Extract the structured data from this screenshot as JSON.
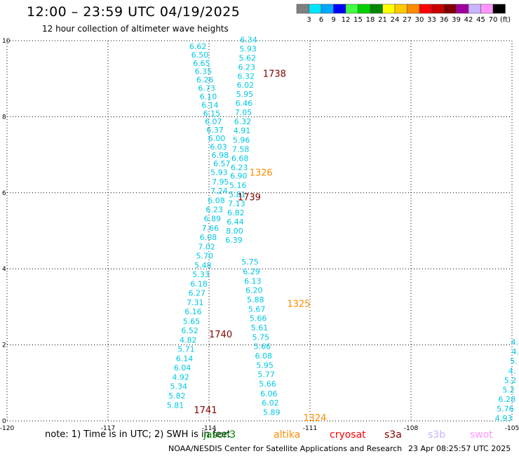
{
  "header": {
    "title": "12:00 – 23:59 UTC 04/19/2025",
    "subtitle": "12 hour collection of altimeter wave heights"
  },
  "colorbar": {
    "colors": [
      "#808080",
      "#00e5ff",
      "#00a8ff",
      "#0000ff",
      "#40ff40",
      "#00d000",
      "#008800",
      "#ffff00",
      "#ffc800",
      "#ff8c00",
      "#ff0000",
      "#c80000",
      "#800000",
      "#a000a0",
      "#c8b4ff",
      "#ff96ff",
      "#000000"
    ],
    "labels": [
      "3",
      "6",
      "9",
      "12",
      "15",
      "18",
      "21",
      "24",
      "27",
      "30",
      "33",
      "36",
      "39",
      "42",
      "45",
      "70",
      "(ft)"
    ]
  },
  "note": "note:  1) Time is in UTC;  2) SWH is in feet",
  "satellites": [
    {
      "name": "jason3",
      "color": "#008800"
    },
    {
      "name": "altika",
      "color": "#ff8c00"
    },
    {
      "name": "cryosat",
      "color": "#ff0000"
    },
    {
      "name": "s3a",
      "color": "#800000"
    },
    {
      "name": "s3b",
      "color": "#c8b4ff"
    },
    {
      "name": "swot",
      "color": "#ff96ff"
    }
  ],
  "footer": {
    "credit": "NOAA/NESDIS Center for Satellite Applications and Research",
    "timestamp": "23 Apr 08:25:57 UTC 2025"
  },
  "chart_data": {
    "type": "scatter",
    "xlim": [
      -120,
      -105
    ],
    "ylim": [
      0,
      10
    ],
    "xticks": [
      -120,
      -117,
      -114,
      -111,
      -108,
      -105
    ],
    "xtick_labels": [
      "-120",
      "-117",
      "-114",
      "-111",
      "-108",
      "-105"
    ],
    "yticks": [
      0,
      2,
      4,
      6,
      8,
      10
    ],
    "ytick_labels": [
      "0",
      "2",
      "4",
      "6",
      "8",
      "10"
    ],
    "grid": true,
    "tracks": [
      {
        "color": "#00c8e6",
        "points": [
          [
            -114.33,
            9.78,
            "6.62"
          ],
          [
            -114.27,
            9.56,
            "6.50"
          ],
          [
            -114.22,
            9.34,
            "6.65"
          ],
          [
            -114.17,
            9.12,
            "6.35"
          ],
          [
            -114.12,
            8.9,
            "6.26"
          ],
          [
            -114.07,
            8.68,
            "6.73"
          ],
          [
            -114.02,
            8.46,
            "6.10"
          ],
          [
            -113.97,
            8.24,
            "6.14"
          ],
          [
            -113.92,
            8.02,
            "6.15"
          ],
          [
            -113.87,
            7.8,
            "6.07"
          ],
          [
            -113.82,
            7.58,
            "6.37"
          ],
          [
            -113.77,
            7.36,
            "6.00"
          ],
          [
            -113.72,
            7.14,
            "6.03"
          ],
          [
            -113.67,
            6.92,
            "6.98"
          ],
          [
            -113.62,
            6.7,
            "6.57"
          ],
          [
            -113.7,
            6.47,
            "5.93"
          ],
          [
            -113.66,
            6.22,
            "7.95"
          ],
          [
            -113.7,
            5.98,
            "7.24"
          ],
          [
            -113.78,
            5.73,
            "6.08"
          ],
          [
            -113.84,
            5.49,
            "6.23"
          ],
          [
            -113.9,
            5.25,
            "6.89"
          ],
          [
            -113.96,
            5.0,
            "7.66"
          ],
          [
            -114.02,
            4.76,
            "6.08"
          ],
          [
            -114.07,
            4.51,
            "7.02"
          ],
          [
            -114.13,
            4.27,
            "5.70"
          ],
          [
            -114.18,
            4.02,
            "5.48"
          ],
          [
            -114.24,
            3.78,
            "5.33"
          ],
          [
            -114.3,
            3.53,
            "6.18"
          ],
          [
            -114.36,
            3.29,
            "6.27"
          ],
          [
            -114.41,
            3.04,
            "7.31"
          ],
          [
            -114.47,
            2.8,
            "6.16"
          ],
          [
            -114.52,
            2.55,
            "5.65"
          ],
          [
            -114.57,
            2.31,
            "6.52"
          ],
          [
            -114.62,
            2.06,
            "4.82"
          ],
          [
            -114.68,
            1.82,
            "5.71"
          ],
          [
            -114.73,
            1.57,
            "6.14"
          ],
          [
            -114.79,
            1.33,
            "6.04"
          ],
          [
            -114.84,
            1.08,
            "4.92"
          ],
          [
            -114.9,
            0.84,
            "5.34"
          ],
          [
            -114.95,
            0.59,
            "5.82"
          ],
          [
            -115.0,
            0.34,
            "5.81"
          ]
        ]
      },
      {
        "color": "#00c8e6",
        "points": [
          [
            -112.82,
            9.95,
            "6.34"
          ],
          [
            -112.84,
            9.71,
            "5.93"
          ],
          [
            -112.86,
            9.47,
            "5.62"
          ],
          [
            -112.88,
            9.23,
            "6.23"
          ],
          [
            -112.9,
            8.99,
            "6.32"
          ],
          [
            -112.92,
            8.76,
            "6.02"
          ],
          [
            -112.94,
            8.52,
            "5.95"
          ],
          [
            -112.96,
            8.28,
            "6.46"
          ],
          [
            -112.98,
            8.04,
            "7.05"
          ],
          [
            -113.0,
            7.8,
            "6.32"
          ],
          [
            -113.02,
            7.56,
            "4.91"
          ],
          [
            -113.04,
            7.32,
            "5.96"
          ],
          [
            -113.06,
            7.08,
            "7.58"
          ],
          [
            -113.08,
            6.84,
            "6.68"
          ],
          [
            -113.1,
            6.6,
            "6.23"
          ],
          [
            -113.12,
            6.37,
            "6.90"
          ],
          [
            -113.14,
            6.13,
            "5.16"
          ],
          [
            -113.16,
            5.89,
            "5.81"
          ],
          [
            -113.18,
            5.65,
            "7.13"
          ],
          [
            -113.2,
            5.41,
            "6.82"
          ],
          [
            -113.22,
            5.17,
            "6.44"
          ],
          [
            -113.24,
            4.93,
            "8.00"
          ],
          [
            -113.26,
            4.69,
            "6.39"
          ]
        ]
      },
      {
        "color": "#00c8e6",
        "points": [
          [
            -112.78,
            4.11,
            "5.75"
          ],
          [
            -112.74,
            3.86,
            "6.29"
          ],
          [
            -112.7,
            3.61,
            "6.13"
          ],
          [
            -112.66,
            3.37,
            "6.20"
          ],
          [
            -112.62,
            3.12,
            "5.88"
          ],
          [
            -112.58,
            2.87,
            "5.67"
          ],
          [
            -112.54,
            2.63,
            "5.66"
          ],
          [
            -112.5,
            2.38,
            "5.61"
          ],
          [
            -112.46,
            2.13,
            "5.75"
          ],
          [
            -112.42,
            1.89,
            "5.66"
          ],
          [
            -112.38,
            1.64,
            "6.08"
          ],
          [
            -112.34,
            1.39,
            "5.95"
          ],
          [
            -112.3,
            1.15,
            "5.77"
          ],
          [
            -112.26,
            0.9,
            "5.66"
          ],
          [
            -112.22,
            0.65,
            "6.06"
          ],
          [
            -112.18,
            0.41,
            "6.02"
          ],
          [
            -112.14,
            0.16,
            "5.89"
          ]
        ]
      },
      {
        "color": "#00c8e6",
        "points": [
          [
            -104.85,
            2.0,
            "4.8"
          ],
          [
            -104.9,
            1.75,
            "4."
          ],
          [
            -104.95,
            1.5,
            "5."
          ],
          [
            -105.0,
            1.25,
            "4."
          ],
          [
            -105.05,
            1.0,
            "5.2"
          ],
          [
            -105.1,
            0.75,
            "5.2"
          ],
          [
            -105.15,
            0.5,
            "6.28"
          ],
          [
            -105.2,
            0.25,
            "5.76"
          ],
          [
            -105.25,
            0.0,
            "4.93"
          ]
        ]
      }
    ],
    "pass_labels": [
      {
        "text": "1738",
        "x": -112.4,
        "y": 9.05,
        "color": "#800000"
      },
      {
        "text": "1326",
        "x": -112.8,
        "y": 6.45,
        "color": "#ff8c00"
      },
      {
        "text": "1739",
        "x": -113.15,
        "y": 5.8,
        "color": "#800000"
      },
      {
        "text": "1325",
        "x": -111.68,
        "y": 3.0,
        "color": "#ff8c00"
      },
      {
        "text": "1740",
        "x": -114.0,
        "y": 2.2,
        "color": "#800000"
      },
      {
        "text": "1741",
        "x": -114.45,
        "y": 0.2,
        "color": "#800000"
      },
      {
        "text": "1324",
        "x": -111.2,
        "y": 0.0,
        "color": "#ff8c00"
      }
    ]
  }
}
